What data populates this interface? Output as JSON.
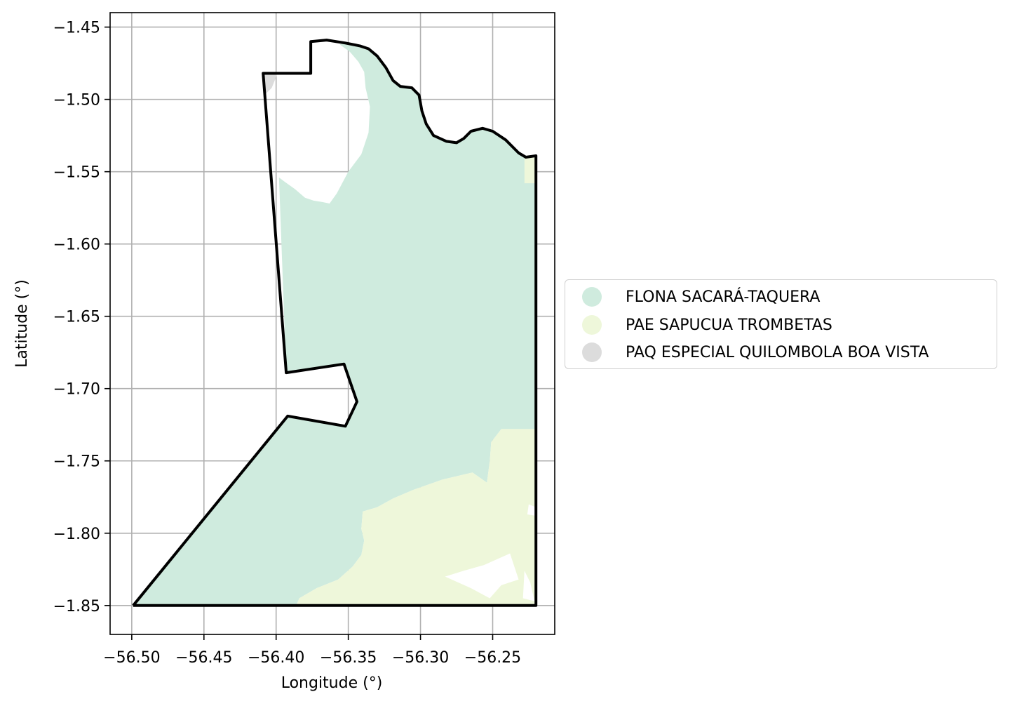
{
  "map": {
    "xlabel": "Longitude (°)",
    "ylabel": "Latitude (°)",
    "xlim": [
      -56.515,
      -56.207
    ],
    "ylim": [
      -1.87,
      -1.44
    ],
    "grid": true,
    "x_ticks": [
      -56.5,
      -56.45,
      -56.4,
      -56.35,
      -56.3,
      -56.25
    ],
    "x_tick_labels": [
      "−56.50",
      "−56.45",
      "−56.40",
      "−56.35",
      "−56.30",
      "−56.25"
    ],
    "y_ticks": [
      -1.45,
      -1.5,
      -1.55,
      -1.6,
      -1.65,
      -1.7,
      -1.75,
      -1.8,
      -1.85
    ],
    "y_tick_labels": [
      "−1.45",
      "−1.50",
      "−1.55",
      "−1.60",
      "−1.65",
      "−1.70",
      "−1.75",
      "−1.80",
      "−1.85"
    ],
    "legend_placement": "center-right outside",
    "colors": {
      "flona": "#cfebde",
      "pae": "#eef7da",
      "paq": "#dcdcdc",
      "boundary": "#000000",
      "grid": "#b0b0b0"
    },
    "layers": [
      {
        "name": "FLONA SACARÁ-TAQUERA",
        "color": "#cfebde"
      },
      {
        "name": "PAE SAPUCUA TROMBETAS",
        "color": "#eef7da"
      },
      {
        "name": "PAQ ESPECIAL QUILOMBOLA BOA VISTA",
        "color": "#dcdcdc"
      }
    ],
    "boundary_lonlat": [
      [
        -56.499,
        -1.85
      ],
      [
        -56.22,
        -1.85
      ],
      [
        -56.22,
        -1.539
      ],
      [
        -56.227,
        -1.54
      ],
      [
        -56.232,
        -1.537
      ],
      [
        -56.241,
        -1.528
      ],
      [
        -56.25,
        -1.522
      ],
      [
        -56.257,
        -1.52
      ],
      [
        -56.265,
        -1.522
      ],
      [
        -56.27,
        -1.527
      ],
      [
        -56.275,
        -1.53
      ],
      [
        -56.282,
        -1.529
      ],
      [
        -56.291,
        -1.525
      ],
      [
        -56.296,
        -1.517
      ],
      [
        -56.299,
        -1.508
      ],
      [
        -56.301,
        -1.497
      ],
      [
        -56.306,
        -1.492
      ],
      [
        -56.314,
        -1.491
      ],
      [
        -56.319,
        -1.487
      ],
      [
        -56.324,
        -1.478
      ],
      [
        -56.33,
        -1.47
      ],
      [
        -56.336,
        -1.465
      ],
      [
        -56.342,
        -1.463
      ],
      [
        -56.352,
        -1.461
      ],
      [
        -56.365,
        -1.459
      ],
      [
        -56.376,
        -1.46
      ],
      [
        -56.376,
        -1.482
      ],
      [
        -56.409,
        -1.482
      ],
      [
        -56.393,
        -1.689
      ],
      [
        -56.353,
        -1.683
      ],
      [
        -56.344,
        -1.709
      ],
      [
        -56.352,
        -1.726
      ],
      [
        -56.392,
        -1.719
      ],
      [
        -56.499,
        -1.85
      ]
    ],
    "flona_lonlat": [
      [
        -56.499,
        -1.85
      ],
      [
        -56.386,
        -1.85
      ],
      [
        -56.384,
        -1.845
      ],
      [
        -56.372,
        -1.838
      ],
      [
        -56.357,
        -1.832
      ],
      [
        -56.347,
        -1.823
      ],
      [
        -56.341,
        -1.815
      ],
      [
        -56.339,
        -1.805
      ],
      [
        -56.341,
        -1.797
      ],
      [
        -56.34,
        -1.785
      ],
      [
        -56.33,
        -1.782
      ],
      [
        -56.319,
        -1.776
      ],
      [
        -56.305,
        -1.77
      ],
      [
        -56.285,
        -1.763
      ],
      [
        -56.264,
        -1.758
      ],
      [
        -56.254,
        -1.765
      ],
      [
        -56.252,
        -1.75
      ],
      [
        -56.251,
        -1.737
      ],
      [
        -56.244,
        -1.728
      ],
      [
        -56.22,
        -1.728
      ],
      [
        -56.22,
        -1.539
      ],
      [
        -56.227,
        -1.54
      ],
      [
        -56.232,
        -1.537
      ],
      [
        -56.241,
        -1.528
      ],
      [
        -56.25,
        -1.522
      ],
      [
        -56.257,
        -1.52
      ],
      [
        -56.265,
        -1.522
      ],
      [
        -56.27,
        -1.527
      ],
      [
        -56.275,
        -1.53
      ],
      [
        -56.282,
        -1.529
      ],
      [
        -56.291,
        -1.525
      ],
      [
        -56.296,
        -1.517
      ],
      [
        -56.299,
        -1.508
      ],
      [
        -56.301,
        -1.497
      ],
      [
        -56.306,
        -1.492
      ],
      [
        -56.314,
        -1.491
      ],
      [
        -56.319,
        -1.487
      ],
      [
        -56.324,
        -1.478
      ],
      [
        -56.33,
        -1.47
      ],
      [
        -56.336,
        -1.465
      ],
      [
        -56.342,
        -1.463
      ],
      [
        -56.352,
        -1.461
      ],
      [
        -56.356,
        -1.462
      ],
      [
        -56.349,
        -1.467
      ],
      [
        -56.343,
        -1.474
      ],
      [
        -56.339,
        -1.481
      ],
      [
        -56.338,
        -1.492
      ],
      [
        -56.335,
        -1.505
      ],
      [
        -56.336,
        -1.523
      ],
      [
        -56.341,
        -1.538
      ],
      [
        -56.35,
        -1.55
      ],
      [
        -56.358,
        -1.565
      ],
      [
        -56.363,
        -1.572
      ],
      [
        -56.368,
        -1.571
      ],
      [
        -56.374,
        -1.57
      ],
      [
        -56.38,
        -1.568
      ],
      [
        -56.387,
        -1.562
      ],
      [
        -56.394,
        -1.557
      ],
      [
        -56.398,
        -1.554
      ],
      [
        -56.393,
        -1.689
      ],
      [
        -56.353,
        -1.683
      ],
      [
        -56.344,
        -1.709
      ],
      [
        -56.352,
        -1.726
      ],
      [
        -56.392,
        -1.719
      ],
      [
        -56.499,
        -1.85
      ]
    ],
    "pae_lonlat": [
      [
        -56.386,
        -1.85
      ],
      [
        -56.22,
        -1.85
      ],
      [
        -56.22,
        -1.728
      ],
      [
        -56.244,
        -1.728
      ],
      [
        -56.251,
        -1.737
      ],
      [
        -56.252,
        -1.75
      ],
      [
        -56.254,
        -1.765
      ],
      [
        -56.264,
        -1.758
      ],
      [
        -56.285,
        -1.763
      ],
      [
        -56.305,
        -1.77
      ],
      [
        -56.319,
        -1.776
      ],
      [
        -56.33,
        -1.782
      ],
      [
        -56.34,
        -1.785
      ],
      [
        -56.341,
        -1.797
      ],
      [
        -56.339,
        -1.805
      ],
      [
        -56.341,
        -1.815
      ],
      [
        -56.347,
        -1.823
      ],
      [
        -56.357,
        -1.832
      ],
      [
        -56.372,
        -1.838
      ],
      [
        -56.384,
        -1.845
      ],
      [
        -56.386,
        -1.85
      ]
    ],
    "pae_small_lonlat": [
      [
        -56.228,
        -1.54
      ],
      [
        -56.22,
        -1.539
      ],
      [
        -56.22,
        -1.558
      ],
      [
        -56.228,
        -1.558
      ],
      [
        -56.228,
        -1.55
      ]
    ],
    "paq_lonlat": [
      [
        -56.409,
        -1.482
      ],
      [
        -56.399,
        -1.482
      ],
      [
        -56.403,
        -1.492
      ],
      [
        -56.408,
        -1.497
      ]
    ],
    "holes_lonlat": [
      [
        [
          -56.256,
          -1.822
        ],
        [
          -56.238,
          -1.814
        ],
        [
          -56.232,
          -1.832
        ],
        [
          -56.244,
          -1.836
        ],
        [
          -56.252,
          -1.845
        ],
        [
          -56.265,
          -1.838
        ],
        [
          -56.283,
          -1.83
        ],
        [
          -56.27,
          -1.826
        ]
      ],
      [
        [
          -56.228,
          -1.826
        ],
        [
          -56.224,
          -1.834
        ],
        [
          -56.221,
          -1.847
        ],
        [
          -56.229,
          -1.845
        ]
      ],
      [
        [
          -56.22,
          -1.782
        ],
        [
          -56.225,
          -1.78
        ],
        [
          -56.226,
          -1.787
        ],
        [
          -56.22,
          -1.788
        ]
      ]
    ]
  }
}
